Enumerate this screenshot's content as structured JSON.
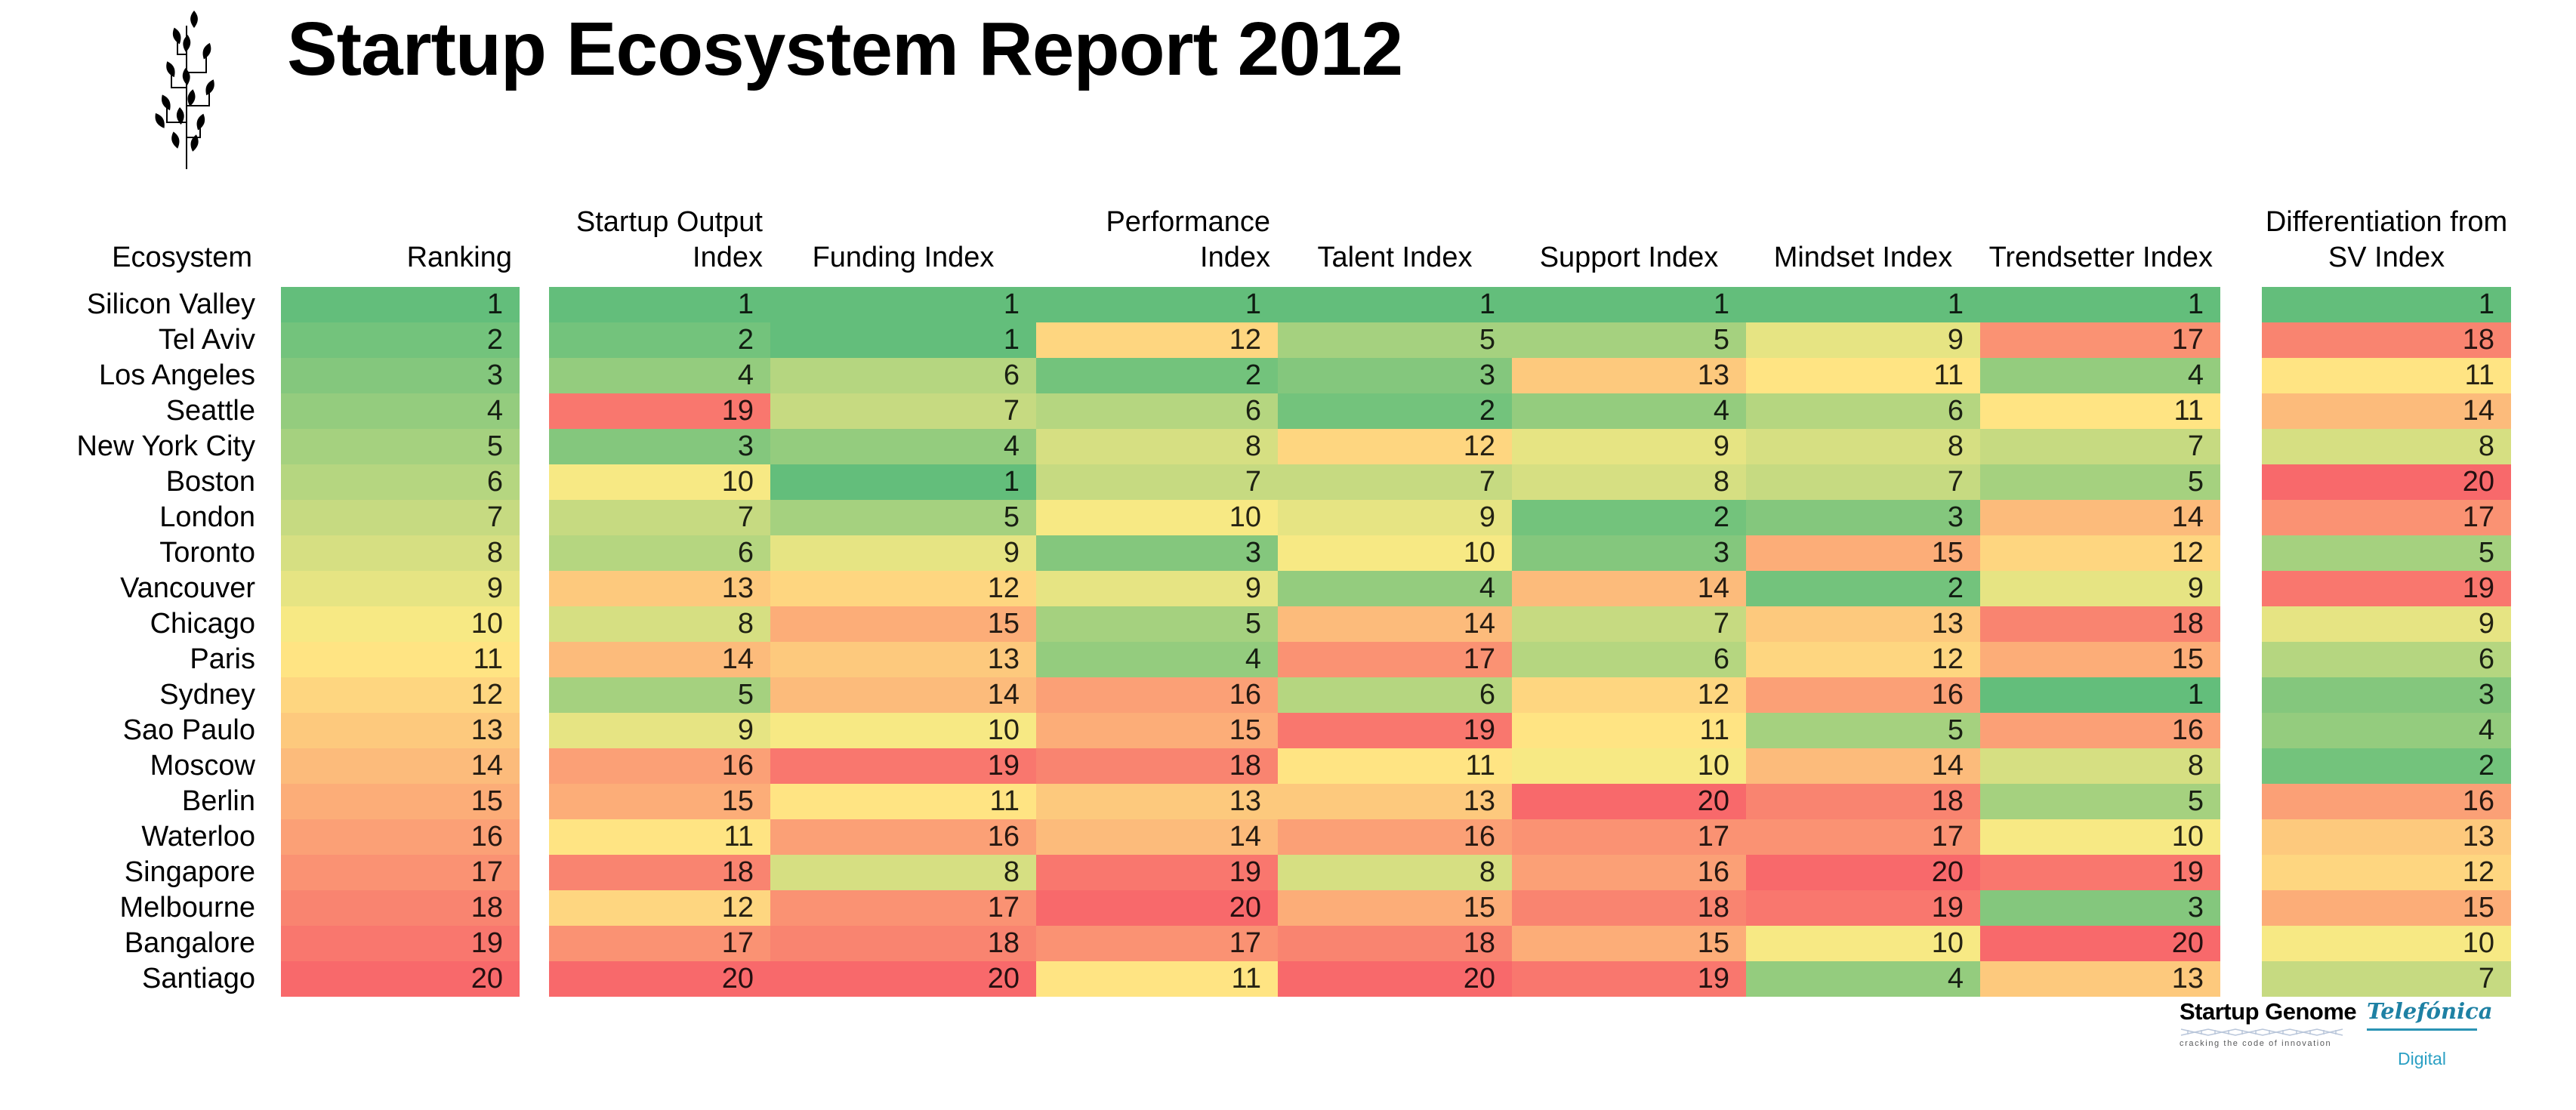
{
  "title": "Startup Ecosystem Report 2012",
  "chart_data": {
    "type": "heatmap",
    "title": "Startup Ecosystem Report 2012",
    "row_label_header": "Ecosystem",
    "columns": [
      "Ranking",
      "Startup Output Index",
      "Funding Index",
      "Performance Index",
      "Talent Index",
      "Support Index",
      "Mindset Index",
      "Trendsetter Index",
      "Differentiation from SV Index"
    ],
    "color_scale": {
      "min_value": 1,
      "mid_value": 10.5,
      "max_value": 20,
      "min_color": "#63BE7B",
      "mid_color": "#FFEB84",
      "max_color": "#F8696B"
    },
    "rows": [
      {
        "ecosystem": "Silicon Valley",
        "values": [
          1,
          1,
          1,
          1,
          1,
          1,
          1,
          1,
          1
        ]
      },
      {
        "ecosystem": "Tel Aviv",
        "values": [
          2,
          2,
          1,
          12,
          5,
          5,
          9,
          17,
          18
        ]
      },
      {
        "ecosystem": "Los Angeles",
        "values": [
          3,
          4,
          6,
          2,
          3,
          13,
          11,
          4,
          11
        ]
      },
      {
        "ecosystem": "Seattle",
        "values": [
          4,
          19,
          7,
          6,
          2,
          4,
          6,
          11,
          14
        ]
      },
      {
        "ecosystem": "New York City",
        "values": [
          5,
          3,
          4,
          8,
          12,
          9,
          8,
          7,
          8
        ]
      },
      {
        "ecosystem": "Boston",
        "values": [
          6,
          10,
          1,
          7,
          7,
          8,
          7,
          5,
          20
        ]
      },
      {
        "ecosystem": "London",
        "values": [
          7,
          7,
          5,
          10,
          9,
          2,
          3,
          14,
          17
        ]
      },
      {
        "ecosystem": "Toronto",
        "values": [
          8,
          6,
          9,
          3,
          10,
          3,
          15,
          12,
          5
        ]
      },
      {
        "ecosystem": "Vancouver",
        "values": [
          9,
          13,
          12,
          9,
          4,
          14,
          2,
          9,
          19
        ]
      },
      {
        "ecosystem": "Chicago",
        "values": [
          10,
          8,
          15,
          5,
          14,
          7,
          13,
          18,
          9
        ]
      },
      {
        "ecosystem": "Paris",
        "values": [
          11,
          14,
          13,
          4,
          17,
          6,
          12,
          15,
          6
        ]
      },
      {
        "ecosystem": "Sydney",
        "values": [
          12,
          5,
          14,
          16,
          6,
          12,
          16,
          1,
          3
        ]
      },
      {
        "ecosystem": "Sao Paulo",
        "values": [
          13,
          9,
          10,
          15,
          19,
          11,
          5,
          16,
          4
        ]
      },
      {
        "ecosystem": "Moscow",
        "values": [
          14,
          16,
          19,
          18,
          11,
          10,
          14,
          8,
          2
        ]
      },
      {
        "ecosystem": "Berlin",
        "values": [
          15,
          15,
          11,
          13,
          13,
          20,
          18,
          5,
          16
        ]
      },
      {
        "ecosystem": "Waterloo",
        "values": [
          16,
          11,
          16,
          14,
          16,
          17,
          17,
          10,
          13
        ]
      },
      {
        "ecosystem": "Singapore",
        "values": [
          17,
          18,
          8,
          19,
          8,
          16,
          20,
          19,
          12
        ]
      },
      {
        "ecosystem": "Melbourne",
        "values": [
          18,
          12,
          17,
          20,
          15,
          18,
          19,
          3,
          15
        ]
      },
      {
        "ecosystem": "Bangalore",
        "values": [
          19,
          17,
          18,
          17,
          18,
          15,
          10,
          20,
          10
        ]
      },
      {
        "ecosystem": "Santiago",
        "values": [
          20,
          20,
          20,
          11,
          20,
          19,
          4,
          13,
          7
        ]
      }
    ]
  },
  "footer": {
    "startup_genome": {
      "name": "Startup Genome",
      "tagline": "cracking the code of innovation",
      "dna_color": "#b9c6da"
    },
    "telefonica": {
      "name": "Telefónica",
      "sub": "Digital",
      "brand_color": "#1e81a4",
      "sub_color": "#2ba0c4",
      "rule_color": "#2a93b4"
    }
  }
}
